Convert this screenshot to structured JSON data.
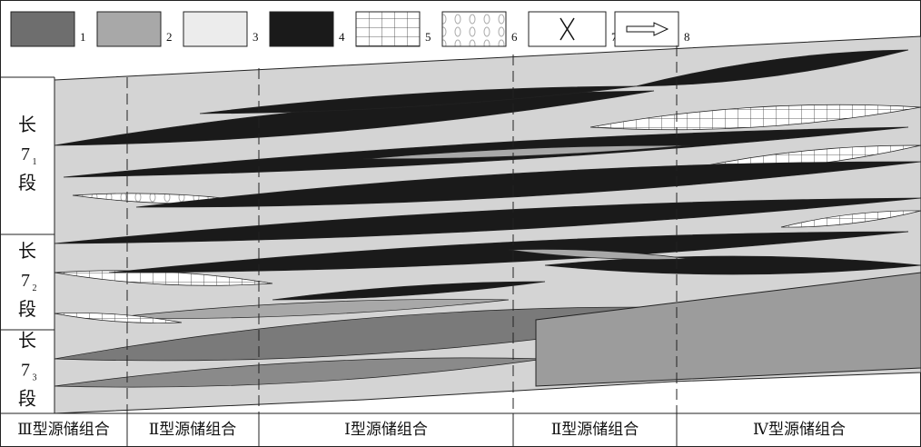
{
  "legend": {
    "items": [
      "1",
      "2",
      "3",
      "4",
      "5",
      "6",
      "7",
      "8"
    ]
  },
  "strata": [
    {
      "top": "长",
      "number": "7",
      "subscript": "1",
      "bottom": "段"
    },
    {
      "top": "长",
      "number": "7",
      "subscript": "2",
      "bottom": "段"
    },
    {
      "top": "长",
      "number": "7",
      "subscript": "3",
      "bottom": "段"
    }
  ],
  "combinations": [
    "Ⅲ型源储组合",
    "Ⅱ型源储组合",
    "Ⅰ型源储组合",
    "Ⅱ型源储组合",
    "Ⅳ型源储组合"
  ]
}
